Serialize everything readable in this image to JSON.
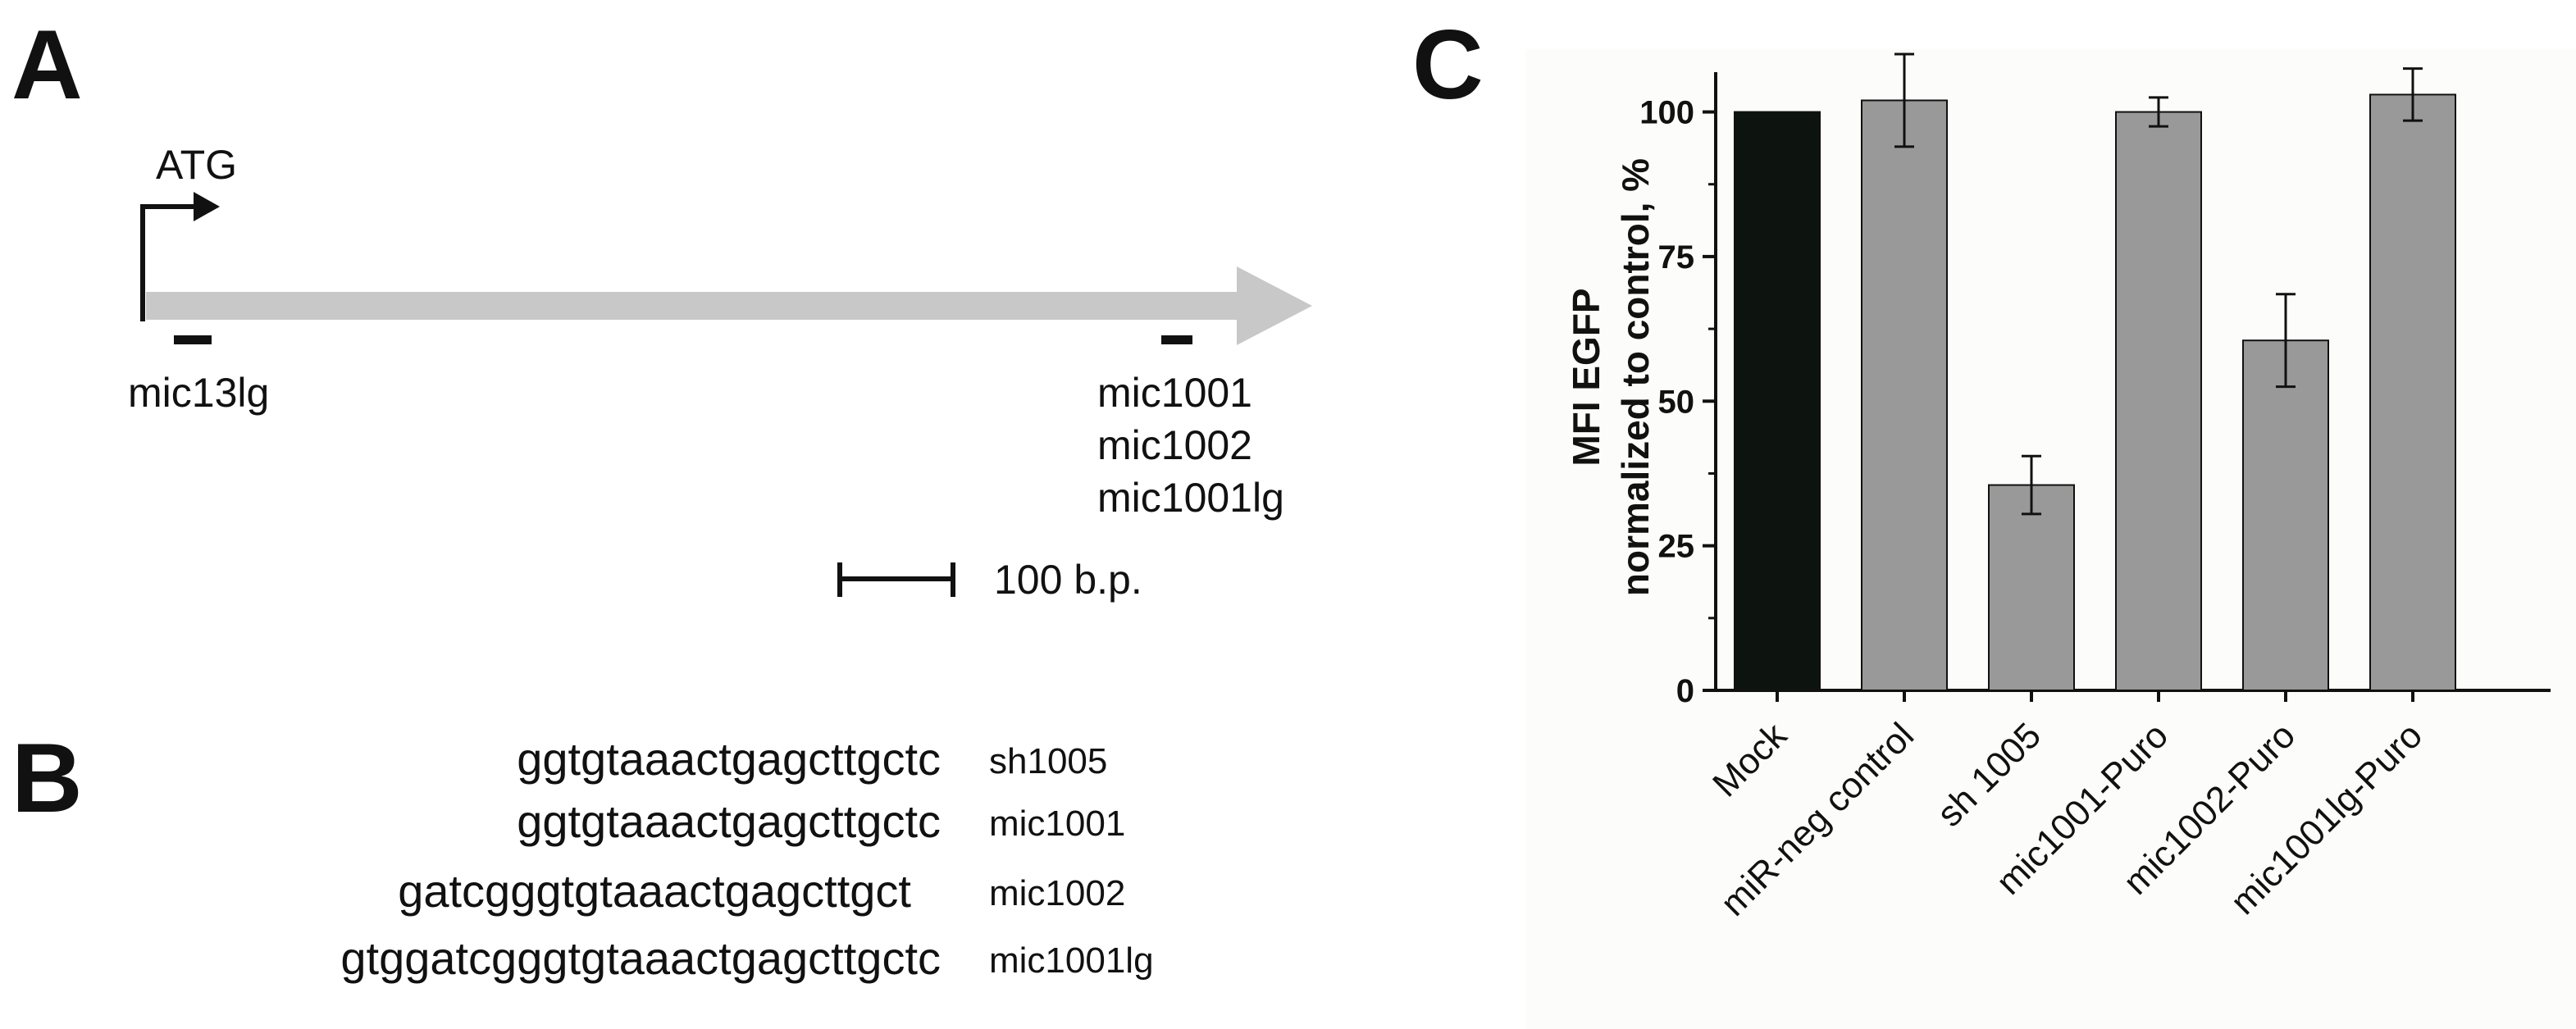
{
  "panels": {
    "a": "A",
    "b": "B",
    "c": "C"
  },
  "panel_a": {
    "start_codon": "ATG",
    "target_left": "mic13lg",
    "targets_right": [
      "mic1001",
      "mic1002",
      "mic1001lg"
    ],
    "scale_bar": "100 b.p."
  },
  "panel_b": {
    "rows": [
      {
        "sequence": "ggtgtaaactgagcttgctc",
        "name": "sh1005"
      },
      {
        "sequence": "ggtgtaaactgagcttgctc",
        "name": "mic1001"
      },
      {
        "sequence": "gatcgggtgtaaactgagcttgct",
        "name": "mic1002"
      },
      {
        "sequence": "gtggatcgggtgtaaactgagcttgctc",
        "name": "mic1001lg"
      }
    ]
  },
  "chart_data": {
    "type": "bar",
    "title": "",
    "ylabel_line1": "MFI EGFP",
    "ylabel_line2": "normalized to control, %",
    "xlabel": "",
    "ylim": [
      0,
      110
    ],
    "yticks": [
      0,
      25,
      50,
      75,
      100
    ],
    "categories": [
      "Mock",
      "miR-neg control",
      "sh 1005",
      "mic1001-Puro",
      "mic1002-Puro",
      "mic1001lg-Puro"
    ],
    "values": [
      100,
      102,
      35.5,
      100,
      60.5,
      103
    ],
    "errors": [
      0,
      8,
      5,
      2.5,
      8,
      4.5
    ],
    "colors": [
      "#0d140f",
      "#999999",
      "#999999",
      "#999999",
      "#999999",
      "#999999"
    ],
    "grid": false,
    "legend": "none"
  }
}
